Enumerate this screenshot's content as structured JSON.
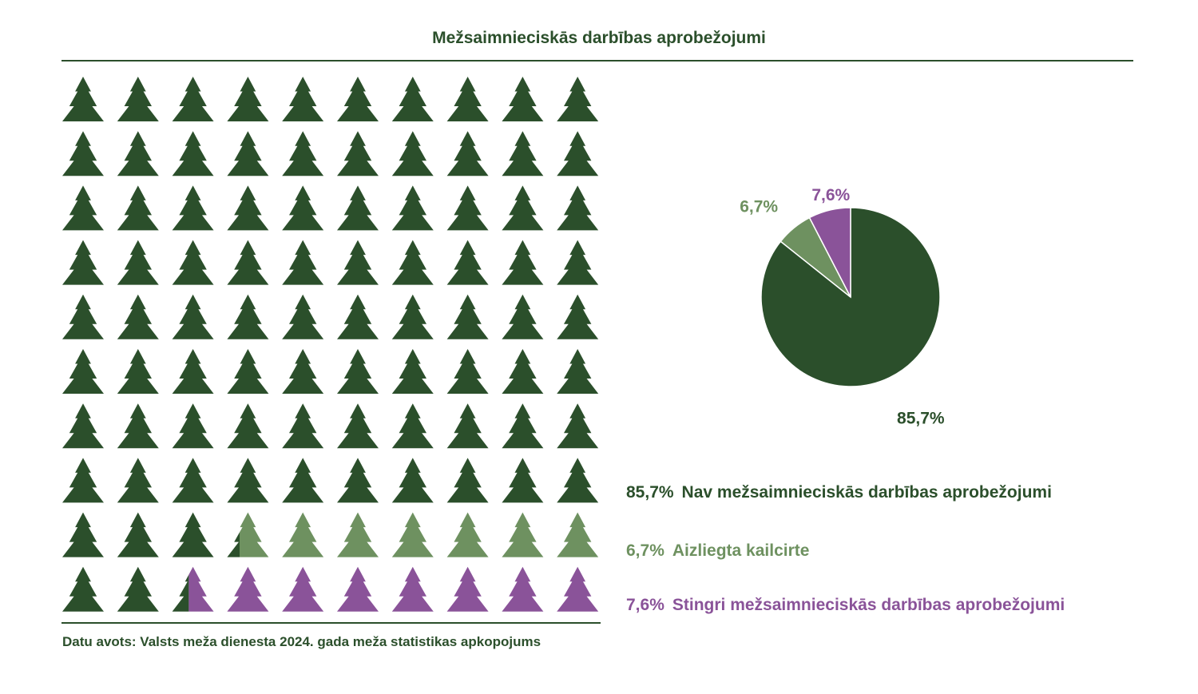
{
  "title": "Mežsaimnieciskās darbības aprobežojumi",
  "source": "Datu avots: Valsts meža dienesta 2024. gada meža statistikas apkopojums",
  "colors": {
    "none": "#2b4f2b",
    "clearcut": "#6e9160",
    "strict": "#8a5399",
    "rule": "#2b4f2b"
  },
  "chart_data": [
    {
      "type": "pie",
      "slices": [
        {
          "key": "none",
          "value": 85.7,
          "label": "85,7%",
          "name": "Nav mežsaimnieciskās darbības aprobežojumi"
        },
        {
          "key": "clearcut",
          "value": 6.7,
          "label": "6,7%",
          "name": "Aizliegta kailcirte"
        },
        {
          "key": "strict",
          "value": 7.6,
          "label": "7,6%",
          "name": "Stingri mežsaimnieciskās darbības aprobežojumi"
        }
      ]
    },
    {
      "type": "pictogram",
      "icon": "tree-icon",
      "rows": 10,
      "cols": 10,
      "total_units": 100,
      "series": [
        {
          "key": "none",
          "value": 85.7
        },
        {
          "key": "clearcut",
          "value": 6.7
        },
        {
          "key": "strict",
          "value": 7.6
        }
      ]
    }
  ],
  "legend": [
    {
      "key": "none",
      "value_label": "85,7%",
      "text": "Nav mežsaimnieciskās darbības aprobežojumi"
    },
    {
      "key": "clearcut",
      "value_label": "6,7%",
      "text": "Aizliegta kailcirte"
    },
    {
      "key": "strict",
      "value_label": "7,6%",
      "text": "Stingri mežsaimnieciskās darbības aprobežojumi"
    }
  ]
}
